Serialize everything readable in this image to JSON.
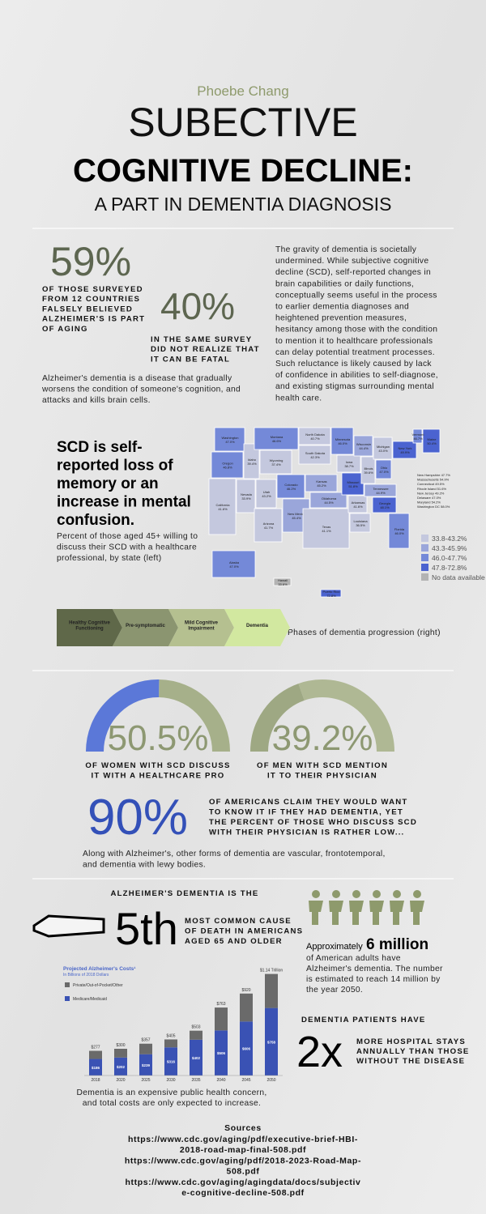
{
  "header": {
    "author": "Phoebe Chang",
    "title_line1": "SUBECTIVE",
    "title_line2": "COGNITIVE DECLINE:",
    "subtitle": "A PART IN DEMENTIA DIAGNOSIS"
  },
  "stats": {
    "stat1": {
      "value": "59%",
      "lines": [
        "OF THOSE SURVEYED",
        "FROM 12 COUNTRIES",
        "FALSELY BELIEVED",
        "ALZHEIMER'S IS PART",
        "OF AGING"
      ]
    },
    "stat2": {
      "value": "40%",
      "lines": [
        "IN THE SAME SURVEY",
        "DID NOT REALIZE THAT",
        "IT CAN BE FATAL"
      ]
    },
    "intro_lines": [
      "Alzheimer's dementia is a disease that gradually",
      "worsens the condition of someone's cognition, and",
      "attacks and kills brain cells."
    ],
    "description_lines": [
      "The gravity of dementia is societally",
      "undermined. While subjective cognitive",
      "decline (SCD), self-reported changes in",
      "brain capabilities or daily functions,",
      "conceptually seems useful in the process",
      "to earlier dementia diagnoses and",
      "heightened prevention measures,",
      "hesitancy among those with the condition",
      "to mention it to healthcare professionals",
      "can delay potential treatment processes.",
      "Such reluctance is likely caused by lack",
      "of confidence in abilities to self-diagnose,",
      "and existing stigmas surrounding mental",
      "health care."
    ]
  },
  "scd": {
    "definition_lines": [
      "SCD is self-",
      "reported loss of",
      "memory or an",
      "increase in mental",
      "confusion."
    ],
    "map_caption_lines": [
      "Percent of those aged 45+ willing to",
      "discuss their SCD with a healthcare",
      "professional, by state (left)"
    ]
  },
  "map": {
    "legend": [
      {
        "label": "33.8-43.2%",
        "min": 33.8,
        "max": 43.2,
        "color": "#c4c8de"
      },
      {
        "label": "43.3-45.9%",
        "min": 43.3,
        "max": 45.9,
        "color": "#9aa6da"
      },
      {
        "label": "46.0-47.7%",
        "min": 46.0,
        "max": 47.7,
        "color": "#7489d8"
      },
      {
        "label": "47.8-72.8%",
        "min": 47.8,
        "max": 72.8,
        "color": "#4b63d0"
      },
      {
        "label": "No data available",
        "color": "#b3b3b3"
      }
    ],
    "states": [
      {
        "label": "Washington",
        "value": 47.0,
        "value_label": "47.0%"
      },
      {
        "label": "Oregon",
        "value": 46.8,
        "value_label": "46.8%"
      },
      {
        "label": "California",
        "value": 41.6,
        "value_label": "41.6%"
      },
      {
        "label": "Idaho",
        "value": 39.4,
        "value_label": "39.4%"
      },
      {
        "label": "Nevada",
        "value": 33.9,
        "value_label": "33.9%"
      },
      {
        "label": "Montana",
        "value": 46.6,
        "value_label": "46.6%"
      },
      {
        "label": "Wyoming",
        "value": 37.4,
        "value_label": "37.4%"
      },
      {
        "label": "Utah",
        "value": 43.2,
        "value_label": "43.2%"
      },
      {
        "label": "Arizona",
        "value": 41.7,
        "value_label": "41.7%"
      },
      {
        "label": "Colorado",
        "value": 46.2,
        "value_label": "46.2%"
      },
      {
        "label": "New Mexico",
        "value": 45.4,
        "value_label": "45.4%"
      },
      {
        "label": "North Dakota",
        "value": 40.7,
        "value_label": "40.7%"
      },
      {
        "label": "South Dakota",
        "value": 42.3,
        "value_label": "42.3%"
      },
      {
        "label": "Kansas",
        "value": 45.2,
        "value_label": "45.2%"
      },
      {
        "label": "Oklahoma",
        "value": 44.5,
        "value_label": "44.5%"
      },
      {
        "label": "Texas",
        "value": 41.1,
        "value_label": "41.1%"
      },
      {
        "label": "Minnesota",
        "value": 46.0,
        "value_label": "46.0%"
      },
      {
        "label": "Iowa",
        "value": 38.7,
        "value_label": "38.7%"
      },
      {
        "label": "Missouri",
        "value": 51.8,
        "value_label": "51.8%"
      },
      {
        "label": "Arkansas",
        "value": 41.6,
        "value_label": "41.6%"
      },
      {
        "label": "Louisiana",
        "value": 36.5,
        "value_label": "36.5%"
      },
      {
        "label": "Wisconsin",
        "value": 44.4,
        "value_label": "44.4%"
      },
      {
        "label": "Illinois",
        "value": 39.6,
        "value_label": "39.6%"
      },
      {
        "label": "Michigan",
        "value": 43.0,
        "value_label": "43.0%"
      },
      {
        "label": "Ohio",
        "value": 47.0,
        "value_label": "47.0%"
      },
      {
        "label": "Tennessee",
        "value": 44.9,
        "value_label": "44.9%"
      },
      {
        "label": "Georgia",
        "value": 48.1,
        "value_label": "48.1%"
      },
      {
        "label": "Florida",
        "value": 46.0,
        "value_label": "46.0%"
      },
      {
        "label": "New York",
        "value": 49.9,
        "value_label": "49.9%"
      },
      {
        "label": "Maine",
        "value": 50.4,
        "value_label": "50.4%"
      },
      {
        "label": "Vermont",
        "value": 46.7,
        "value_label": "46.7%"
      },
      {
        "label": "Alaska",
        "value": 47.0,
        "value_label": "47.0%"
      },
      {
        "label": "Hawaii",
        "value": 33.6,
        "value_label": "33.6%"
      },
      {
        "label": "Puerto Rico",
        "value": 72.8,
        "value_label": "72.8%"
      }
    ],
    "northeast": [
      "New Hampshire 47.7%",
      "Massachusetts 54.9%",
      "Connecticut 49.5%",
      "Rhode Island 51.6%",
      "New Jersey 49.2%",
      "Delaware 47.0%",
      "Maryland 54.2%",
      "Washington DC 58.0%"
    ]
  },
  "phases": {
    "stages": [
      [
        "Healthy Cognitive",
        "Functioning"
      ],
      [
        "Pre-symptomatic"
      ],
      [
        "Mild Cognitive",
        "Impairment"
      ],
      [
        "Dementia"
      ]
    ],
    "colors": [
      "#5f6849",
      "#8b9570",
      "#b5c090",
      "#d2e8a0"
    ],
    "caption": "Phases of dementia progression (right)"
  },
  "gauges": [
    {
      "value": 50.5,
      "value_label": "50.5%",
      "color": "#5b78d8",
      "track": "#a6b08a",
      "caption_lines": [
        "OF WOMEN WITH SCD DISCUSS",
        "IT WITH A HEALTHCARE PRO"
      ]
    },
    {
      "value": 39.2,
      "value_label": "39.2%",
      "color": "#9ea883",
      "track": "#afb894",
      "caption_lines": [
        "OF MEN WITH SCD MENTION",
        "IT TO THEIR PHYSICIAN"
      ]
    }
  ],
  "awareness": {
    "value": "90%",
    "lines": [
      "OF AMERICANS CLAIM THEY WOULD WANT",
      "TO KNOW IT IF THEY HAD DEMENTIA, YET",
      "THE PERCENT OF THOSE WHO DISCUSS SCD",
      "WITH THEIR PHYSICIAN IS RATHER LOW..."
    ]
  },
  "other_forms_lines": [
    "Along with Alzheimer's, other forms of dementia are vascular, frontotemporal,",
    "and dementia with lewy bodies."
  ],
  "death": {
    "heading": "ALZHEIMER'S DEMENTIA IS THE",
    "rank": "5th",
    "lines": [
      "MOST COMMON CAUSE",
      "OF DEATH IN AMERICANS",
      "AGED 65 AND OLDER"
    ]
  },
  "prevalence": {
    "prefix": "Approximately",
    "highlight": "6 million",
    "lines": [
      "of American adults have",
      "Alzheimer's dementia. The number",
      "is estimated to reach 14 million by",
      "the year 2050."
    ]
  },
  "costs_chart": {
    "type": "bar",
    "stacked": true,
    "title": "Projected Alzheimer's Costs¹",
    "subtitle": "In Billions of 2018 Dollars",
    "categories": [
      "2018",
      "2020",
      "2025",
      "2030",
      "2035",
      "2040",
      "2045",
      "2050"
    ],
    "series": [
      {
        "name": "Medicare/Medicaid",
        "color": "#3a52b4",
        "values": [
          186,
          202,
          239,
          316,
          402,
          506,
          606,
          758
        ],
        "value_labels": [
          "$186",
          "$202",
          "$239",
          "$316",
          "$402",
          "$506",
          "$606",
          "$758"
        ]
      },
      {
        "name": "Private/Out-of-Pocket/Other",
        "color": "#6a6a6a",
        "values": [
          91,
          98,
          118,
          89,
          101,
          257,
          314,
          382
        ]
      }
    ],
    "bar_top_labels": [
      "$277",
      "$300",
      "$357",
      "$405",
      "$503",
      "$763",
      "$920",
      "$1.14 Trillion"
    ],
    "ylim": [
      0,
      1200
    ]
  },
  "hospital": {
    "heading": "DEMENTIA PATIENTS HAVE",
    "multiplier": "2x",
    "lines": [
      "MORE HOSPITAL STAYS",
      "ANNUALLY THAN THOSE",
      "WITHOUT THE DISEASE"
    ]
  },
  "cost_caption_lines": [
    "Dementia is an expensive public health concern,",
    "and total costs are only expected to increase."
  ],
  "sources": {
    "heading": "Sources",
    "lines": [
      "https://www.cdc.gov/aging/pdf/executive-brief-HBI-",
      "2018-road-map-final-508.pdf",
      "https://www.cdc.gov/aging/pdf/2018-2023-Road-Map-",
      "508.pdf",
      "https://www.cdc.gov/aging/agingdata/docs/subjectiv",
      "e-cognitive-decline-508.pdf"
    ]
  }
}
